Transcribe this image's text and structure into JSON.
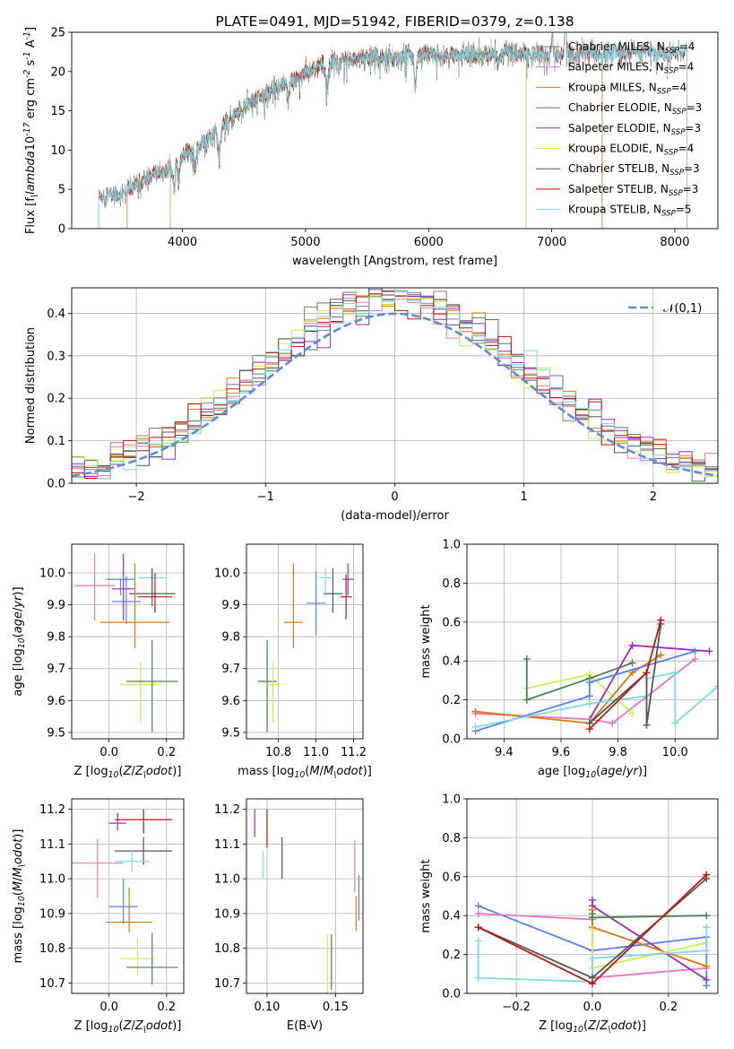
{
  "colors": {
    "Chabrier MILES": "#808080",
    "Salpeter MILES": "#e377c2",
    "Kroupa MILES": "#d97a14",
    "Chabrier ELODIE": "#4f7f50",
    "Salpeter ELODIE": "#9b2bbd",
    "Kroupa ELODIE": "#ccee55",
    "Chabrier STELIB": "#555555",
    "Salpeter STELIB": "#c01515",
    "Kroupa STELIB": "#80d8e0",
    "blue": "#5b80e8",
    "grid": "#b0b0b0",
    "normal": "#5b8ed6"
  },
  "chart_data": [
    {
      "id": "spectrum",
      "type": "line",
      "title": "PLATE=0491, MJD=51942, FIBERID=0379, z=0.138",
      "xlabel": "wavelength [Angstrom, rest frame]",
      "ylabel": "Flux [f$_\\lambda$10$^{-17}$ erg cm$^{-2}$ s$^{-1}$ A$^{-1}$]",
      "xlim": [
        3100,
        8350
      ],
      "ylim": [
        0,
        25
      ],
      "xticks": [
        4000,
        5000,
        6000,
        7000,
        8000
      ],
      "yticks": [
        0,
        5,
        10,
        15,
        20,
        25
      ],
      "grid": false,
      "legend_position": "top-right",
      "continuum": [
        [
          3300,
          3.9
        ],
        [
          3400,
          4.4
        ],
        [
          3500,
          4.3
        ],
        [
          3600,
          5.2
        ],
        [
          3700,
          6.3
        ],
        [
          3800,
          7.1
        ],
        [
          3900,
          7.4
        ],
        [
          4000,
          9.0
        ],
        [
          4100,
          10.0
        ],
        [
          4200,
          11.3
        ],
        [
          4300,
          12.6
        ],
        [
          4400,
          14.0
        ],
        [
          4500,
          15.5
        ],
        [
          4600,
          16.3
        ],
        [
          4700,
          17.3
        ],
        [
          4800,
          18.4
        ],
        [
          4900,
          19.1
        ],
        [
          5000,
          19.7
        ],
        [
          5100,
          20.6
        ],
        [
          5200,
          21.2
        ],
        [
          5300,
          21.5
        ],
        [
          5400,
          21.7
        ],
        [
          5500,
          21.9
        ],
        [
          5600,
          21.7
        ],
        [
          5700,
          21.7
        ],
        [
          5800,
          21.9
        ],
        [
          5900,
          22.3
        ],
        [
          6000,
          22.1
        ],
        [
          6100,
          21.9
        ],
        [
          6200,
          22.0
        ],
        [
          6300,
          22.3
        ],
        [
          6400,
          22.1
        ],
        [
          6500,
          22.2
        ],
        [
          6600,
          22.6
        ],
        [
          6700,
          22.3
        ],
        [
          6800,
          22.1
        ],
        [
          6900,
          22.3
        ],
        [
          7000,
          22.1
        ],
        [
          7100,
          22.3
        ],
        [
          7200,
          22.1
        ],
        [
          7300,
          22.6
        ],
        [
          7400,
          22.3
        ],
        [
          7500,
          22.6
        ],
        [
          7600,
          22.3
        ],
        [
          7700,
          22.5
        ],
        [
          7800,
          22.6
        ],
        [
          7900,
          22.3
        ],
        [
          8000,
          22.5
        ],
        [
          8100,
          22.8
        ]
      ],
      "series": [
        {
          "name": "Chabrier MILES, N$_{SSP}$=4",
          "key": "Chabrier MILES",
          "range": [
            3550,
            7410
          ]
        },
        {
          "name": "Salpeter MILES, N$_{SSP}$=4",
          "key": "Salpeter MILES",
          "range": [
            3550,
            7410
          ]
        },
        {
          "name": "Kroupa MILES, N$_{SSP}$=4",
          "key": "Kroupa MILES",
          "range": [
            3550,
            7410
          ]
        },
        {
          "name": "Chabrier ELODIE, N$_{SSP}$=3",
          "key": "Chabrier ELODIE",
          "range": [
            3900,
            6790
          ]
        },
        {
          "name": "Salpeter ELODIE, N$_{SSP}$=3",
          "key": "Salpeter ELODIE",
          "range": [
            3900,
            6790
          ]
        },
        {
          "name": "Kroupa ELODIE, N$_{SSP}$=4",
          "key": "Kroupa ELODIE",
          "range": [
            3900,
            6790
          ]
        },
        {
          "name": "Chabrier STELIB, N$_{SSP}$=3",
          "key": "Chabrier STELIB",
          "range": [
            3320,
            8100
          ]
        },
        {
          "name": "Salpeter STELIB, N$_{SSP}$=3",
          "key": "Salpeter STELIB",
          "range": [
            3320,
            8100
          ]
        },
        {
          "name": "Kroupa STELIB, N$_{SSP}$=5",
          "key": "Kroupa STELIB",
          "range": [
            3320,
            8100
          ]
        }
      ]
    },
    {
      "id": "residuals",
      "type": "histogram",
      "xlabel": "(data-model)/error",
      "ylabel": "Normed distribution",
      "xlim": [
        -2.5,
        2.5
      ],
      "ylim": [
        0,
        0.46
      ],
      "xticks": [
        -2,
        -1,
        0,
        1,
        2
      ],
      "yticks": [
        0.0,
        0.1,
        0.2,
        0.3,
        0.4
      ],
      "bin_width": 0.1,
      "grid": true,
      "legend_position": "top-right",
      "legend_label": "$\\mathcal{N}(0,1)$",
      "series_keys": [
        "Chabrier MILES",
        "Salpeter MILES",
        "Kroupa MILES",
        "Chabrier ELODIE",
        "Salpeter ELODIE",
        "Kroupa ELODIE",
        "Chabrier STELIB",
        "Salpeter STELIB",
        "Kroupa STELIB"
      ],
      "series_colors": [
        "#808080",
        "#e377c2",
        "#d97a14",
        "#4f7f50",
        "#9b2bbd",
        "#ccee55",
        "#555555",
        "#c01515",
        "#80d8e0"
      ]
    },
    {
      "id": "age_vs_Z",
      "type": "scatter",
      "xlabel": "Z [log$_{10}$($Z/Z_\\odot$)]",
      "ylabel": "age  [log$_{10}$($age/yr$)]",
      "xlim": [
        -0.13,
        0.26
      ],
      "ylim": [
        9.48,
        10.09
      ],
      "xticks": [
        0.0,
        0.2
      ],
      "yticks": [
        9.5,
        9.6,
        9.7,
        9.8,
        9.9,
        10.0
      ],
      "grid": true,
      "points": [
        {
          "key": "Salpeter MILES",
          "x": -0.05,
          "xerr": 0.07,
          "y": 9.96,
          "yerr": [
            0.11,
            0.1
          ]
        },
        {
          "key": "Salpeter ELODIE",
          "x": 0.05,
          "xerr": 0.04,
          "y": 9.95,
          "yerr": [
            0.1,
            0.11
          ]
        },
        {
          "key": "blue",
          "x": 0.04,
          "xerr": 0.05,
          "y": 9.98,
          "yerr": [
            0.05,
            0.0
          ]
        },
        {
          "key": "blue",
          "x": 0.06,
          "xerr": 0.05,
          "y": 9.91,
          "yerr": [
            0.07,
            0.08
          ]
        },
        {
          "key": "Kroupa STELIB",
          "x": 0.15,
          "xerr": 0.05,
          "y": 9.985,
          "yerr": [
            0.04,
            0.03
          ]
        },
        {
          "key": "Chabrier STELIB",
          "x": 0.15,
          "xerr": 0.08,
          "y": 9.935,
          "yerr": [
            0.04,
            0.08
          ]
        },
        {
          "key": "Salpeter STELIB",
          "x": 0.16,
          "xerr": 0.06,
          "y": 9.925,
          "yerr": [
            0.05,
            0.075
          ]
        },
        {
          "key": "Kroupa MILES",
          "x": 0.09,
          "xerr": 0.12,
          "y": 9.845,
          "yerr": [
            0.08,
            0.185
          ]
        },
        {
          "key": "Kroupa ELODIE",
          "x": 0.11,
          "xerr": 0.07,
          "y": 9.65,
          "yerr": [
            0.12,
            0.07
          ]
        },
        {
          "key": "Chabrier ELODIE",
          "x": 0.15,
          "xerr": 0.09,
          "y": 9.66,
          "yerr": [
            0.16,
            0.13
          ]
        }
      ]
    },
    {
      "id": "age_vs_mass",
      "type": "scatter",
      "xlabel": "mass [log$_{10}$($M/M_\\odot$)]",
      "ylabel": "",
      "xlim": [
        10.63,
        11.25
      ],
      "ylim": [
        9.48,
        10.09
      ],
      "xticks": [
        10.8,
        11.0,
        11.2
      ],
      "yticks": [
        9.5,
        9.6,
        9.7,
        9.8,
        9.9,
        10.0
      ],
      "grid": true,
      "points": [
        {
          "key": "Salpeter ELODIE",
          "x": 11.17,
          "xerr": 0.03,
          "y": 9.98,
          "yerr": [
            0.05,
            0.05
          ]
        },
        {
          "key": "Chabrier STELIB",
          "x": 11.09,
          "xerr": 0.05,
          "y": 9.935,
          "yerr": [
            0.06,
            0.08
          ]
        },
        {
          "key": "Salpeter STELIB",
          "x": 11.16,
          "xerr": 0.03,
          "y": 9.925,
          "yerr": [
            0.07,
            0.07
          ]
        },
        {
          "key": "blue",
          "x": 11.0,
          "xerr": 0.05,
          "y": 9.905,
          "yerr": [
            0.1,
            0.1
          ]
        },
        {
          "key": "Kroupa STELIB",
          "x": 11.05,
          "xerr": 0.03,
          "y": 9.985,
          "yerr": [
            0.06,
            0.03
          ]
        },
        {
          "key": "Kroupa MILES",
          "x": 10.88,
          "xerr": 0.05,
          "y": 9.845,
          "yerr": [
            0.08,
            0.185
          ]
        },
        {
          "key": "Chabrier ELODIE",
          "x": 10.74,
          "xerr": 0.05,
          "y": 9.66,
          "yerr": [
            0.16,
            0.13
          ]
        },
        {
          "key": "Kroupa ELODIE",
          "x": 10.77,
          "xerr": 0.04,
          "y": 9.65,
          "yerr": [
            0.12,
            0.07
          ]
        }
      ]
    },
    {
      "id": "massweight_vs_age",
      "type": "line",
      "xlabel": "age  [log$_{10}$($age/yr$)]",
      "ylabel": "mass weight",
      "xlim": [
        9.27,
        10.15
      ],
      "ylim": [
        0,
        1
      ],
      "xticks": [
        9.4,
        9.6,
        9.8,
        10.0
      ],
      "yticks": [
        0.0,
        0.2,
        0.4,
        0.6,
        0.8,
        1.0
      ],
      "grid": true,
      "series": [
        {
          "key": "Kroupa ELODIE",
          "x": [
            9.48,
            9.7,
            9.85
          ],
          "y": [
            0.26,
            0.33,
            0.13
          ]
        },
        {
          "key": "Chabrier ELODIE",
          "x": [
            9.48,
            9.48,
            9.7,
            9.85
          ],
          "y": [
            0.41,
            0.2,
            0.31,
            0.39
          ]
        },
        {
          "key": "Salpeter ELODIE",
          "x": [
            9.7,
            9.85,
            10.12
          ],
          "y": [
            0.1,
            0.48,
            0.45
          ]
        },
        {
          "key": "Salpeter MILES",
          "x": [
            9.3,
            9.7,
            9.78,
            10.07
          ],
          "y": [
            0.13,
            0.1,
            0.08,
            0.41
          ]
        },
        {
          "key": "Kroupa MILES",
          "x": [
            9.3,
            9.7,
            9.85,
            9.95
          ],
          "y": [
            0.14,
            0.08,
            0.34,
            0.43
          ]
        },
        {
          "key": "blue",
          "x": [
            9.3,
            9.7,
            9.7,
            10.07
          ],
          "y": [
            0.04,
            0.22,
            0.29,
            0.45
          ]
        },
        {
          "key": "Kroupa STELIB",
          "x": [
            9.3,
            9.7,
            9.9,
            9.9,
            10.0,
            10.0,
            10.15
          ],
          "y": [
            0.06,
            0.18,
            0.22,
            0.31,
            0.34,
            0.08,
            0.27
          ]
        },
        {
          "key": "Chabrier STELIB",
          "x": [
            9.7,
            9.9,
            9.9,
            9.95
          ],
          "y": [
            0.08,
            0.34,
            0.07,
            0.59
          ]
        },
        {
          "key": "Salpeter STELIB",
          "x": [
            9.7,
            9.9,
            9.95
          ],
          "y": [
            0.05,
            0.34,
            0.61
          ]
        }
      ]
    },
    {
      "id": "mass_vs_Z",
      "type": "scatter",
      "xlabel": "Z [log$_{10}$($Z/Z_\\odot$)]",
      "ylabel": "mass [log$_{10}$($M/M_\\odot$)]",
      "xlim": [
        -0.13,
        0.26
      ],
      "ylim": [
        10.67,
        11.23
      ],
      "xticks": [
        0.0,
        0.2
      ],
      "yticks": [
        10.7,
        10.8,
        10.9,
        11.0,
        11.1,
        11.2
      ],
      "grid": true,
      "points": [
        {
          "key": "Salpeter ELODIE",
          "x": 0.03,
          "xerr": 0.03,
          "y": 11.16,
          "yerr": [
            0.02,
            0.03
          ]
        },
        {
          "key": "Salpeter STELIB",
          "x": 0.12,
          "xerr": 0.1,
          "y": 11.17,
          "yerr": [
            0.04,
            0.03
          ]
        },
        {
          "key": "Chabrier STELIB",
          "x": 0.12,
          "xerr": 0.1,
          "y": 11.08,
          "yerr": [
            0.04,
            0.04
          ]
        },
        {
          "key": "Salpeter MILES",
          "x": -0.04,
          "xerr": 0.09,
          "y": 11.045,
          "yerr": [
            0.1,
            0.07
          ]
        },
        {
          "key": "Kroupa STELIB",
          "x": 0.08,
          "xerr": 0.06,
          "y": 11.05,
          "yerr": [
            0.03,
            0.03
          ]
        },
        {
          "key": "blue",
          "x": 0.05,
          "xerr": 0.05,
          "y": 10.92,
          "yerr": [
            0.05,
            0.08
          ]
        },
        {
          "key": "Kroupa MILES",
          "x": 0.07,
          "xerr": 0.08,
          "y": 10.875,
          "yerr": [
            0.03,
            0.1
          ]
        },
        {
          "key": "Kroupa ELODIE",
          "x": 0.1,
          "xerr": 0.06,
          "y": 10.77,
          "yerr": [
            0.05,
            0.06
          ]
        },
        {
          "key": "Chabrier ELODIE",
          "x": 0.15,
          "xerr": 0.09,
          "y": 10.745,
          "yerr": [
            0.05,
            0.1
          ]
        }
      ]
    },
    {
      "id": "mass_vs_ebv",
      "type": "scatter",
      "xlabel": "E(B-V)",
      "ylabel": "",
      "xlim": [
        0.085,
        0.17
      ],
      "ylim": [
        10.67,
        11.23
      ],
      "xticks": [
        0.1,
        0.15
      ],
      "yticks": [
        10.7,
        10.8,
        10.9,
        11.0,
        11.1,
        11.2
      ],
      "grid": true,
      "points": [
        {
          "key": "Salpeter ELODIE",
          "x": 0.091,
          "y": 11.16,
          "yerr": [
            0.04,
            0.04
          ]
        },
        {
          "key": "Salpeter STELIB",
          "x": 0.1,
          "y": 11.15,
          "yerr": [
            0.06,
            0.05
          ]
        },
        {
          "key": "Kroupa STELIB",
          "x": 0.097,
          "y": 11.04,
          "yerr": [
            0.04,
            0.04
          ]
        },
        {
          "key": "Chabrier STELIB",
          "x": 0.111,
          "y": 11.06,
          "yerr": [
            0.06,
            0.06
          ]
        },
        {
          "key": "Salpeter MILES",
          "x": 0.164,
          "y": 11.04,
          "yerr": [
            0.08,
            0.07
          ]
        },
        {
          "key": "blue",
          "x": 0.167,
          "y": 10.94,
          "yerr": [
            0.06,
            0.07
          ]
        },
        {
          "key": "Kroupa MILES",
          "x": 0.165,
          "y": 10.9,
          "yerr": [
            0.05,
            0.05
          ]
        },
        {
          "key": "Kroupa ELODIE",
          "x": 0.144,
          "y": 10.73,
          "yerr": [
            0.06,
            0.11
          ]
        },
        {
          "key": "Chabrier ELODIE",
          "x": 0.147,
          "y": 10.74,
          "yerr": [
            0.06,
            0.1
          ]
        }
      ]
    },
    {
      "id": "massweight_vs_Z",
      "type": "line",
      "xlabel": "Z [log$_{10}$($Z/Z_\\odot$)]",
      "ylabel": "mass weight",
      "xlim": [
        -0.33,
        0.33
      ],
      "ylim": [
        0,
        1
      ],
      "xticks": [
        -0.2,
        0.0,
        0.2
      ],
      "yticks": [
        0.0,
        0.2,
        0.4,
        0.6,
        0.8,
        1.0
      ],
      "grid": true,
      "series": [
        {
          "key": "blue",
          "x": [
            -0.3,
            0.0,
            0.3,
            0.3
          ],
          "y": [
            0.45,
            0.22,
            0.29,
            0.04
          ]
        },
        {
          "key": "Salpeter MILES",
          "x": [
            -0.3,
            0.0,
            0.0,
            0.3
          ],
          "y": [
            0.41,
            0.38,
            0.08,
            0.13
          ]
        },
        {
          "key": "Salpeter ELODIE",
          "x": [
            0.0,
            0.0,
            0.3
          ],
          "y": [
            0.48,
            0.45,
            0.07
          ]
        },
        {
          "key": "Kroupa MILES",
          "x": [
            0.0,
            0.0,
            0.3
          ],
          "y": [
            0.43,
            0.34,
            0.14
          ]
        },
        {
          "key": "Chabrier ELODIE",
          "x": [
            0.0,
            0.0,
            0.3
          ],
          "y": [
            0.41,
            0.39,
            0.4
          ]
        },
        {
          "key": "Kroupa ELODIE",
          "x": [
            0.0,
            0.0,
            0.3
          ],
          "y": [
            0.33,
            0.13,
            0.26
          ]
        },
        {
          "key": "Kroupa STELIB",
          "x": [
            -0.3,
            -0.3,
            0.0,
            0.0,
            0.3,
            0.3
          ],
          "y": [
            0.27,
            0.08,
            0.06,
            0.18,
            0.22,
            0.34
          ]
        },
        {
          "key": "Chabrier STELIB",
          "x": [
            -0.3,
            0.0,
            0.3
          ],
          "y": [
            0.34,
            0.08,
            0.59
          ]
        },
        {
          "key": "Salpeter STELIB",
          "x": [
            -0.3,
            0.0,
            0.3
          ],
          "y": [
            0.34,
            0.05,
            0.61
          ]
        }
      ]
    }
  ]
}
